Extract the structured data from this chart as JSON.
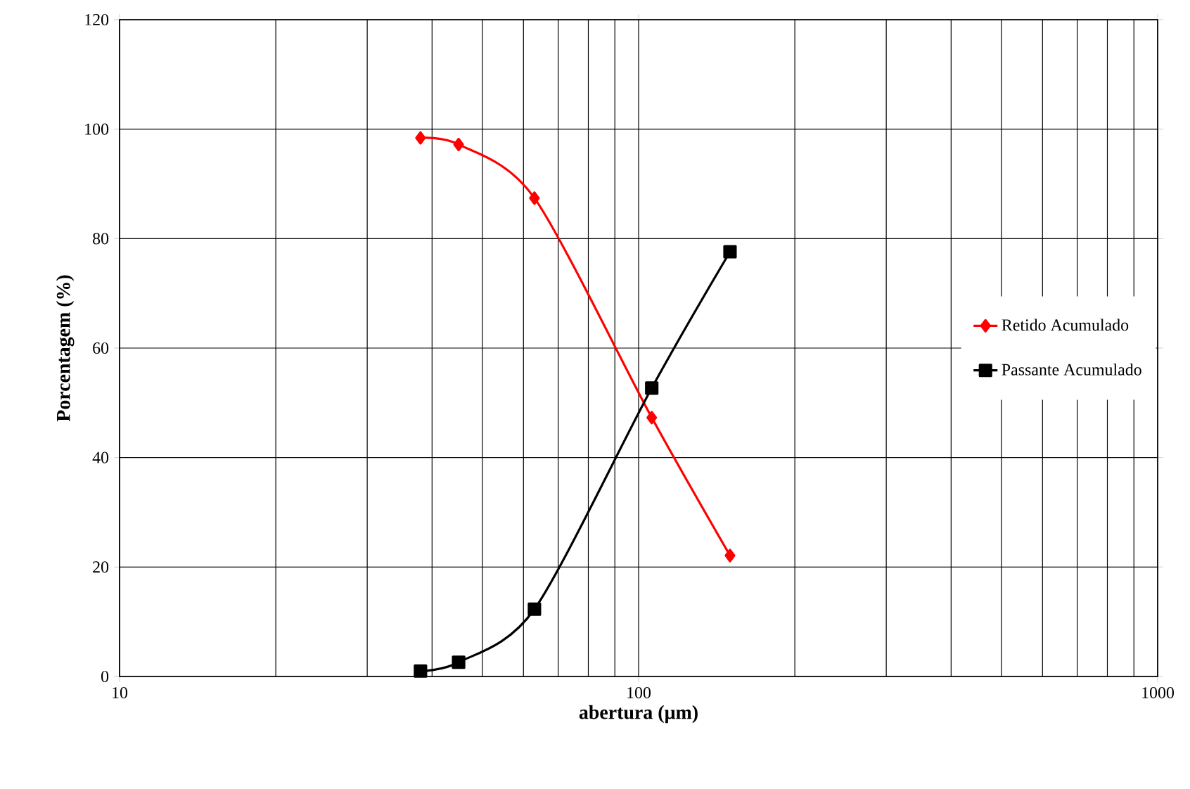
{
  "chart_data": {
    "type": "line",
    "xlabel": "abertura (µm)",
    "ylabel": "Porcentagem (%)",
    "log": "x",
    "xlim": [
      10,
      1000
    ],
    "xticks": [
      10,
      100,
      1000
    ],
    "ylim": [
      0,
      120
    ],
    "yticks": [
      0,
      20,
      40,
      60,
      80,
      100,
      120
    ],
    "grid": true,
    "legend": "right",
    "line_style": "solid",
    "series": [
      {
        "name": "Retido Acumulado",
        "color": "#ff0000",
        "marker": "diamond",
        "x": [
          38,
          45,
          63,
          106,
          150
        ],
        "values": [
          98.4,
          97.2,
          87.4,
          47.3,
          22.1
        ]
      },
      {
        "name": "Passante Acumulado",
        "color": "#000000",
        "marker": "square",
        "x": [
          38,
          45,
          63,
          106,
          150
        ],
        "values": [
          1.0,
          2.6,
          12.3,
          52.7,
          77.6
        ]
      }
    ]
  }
}
